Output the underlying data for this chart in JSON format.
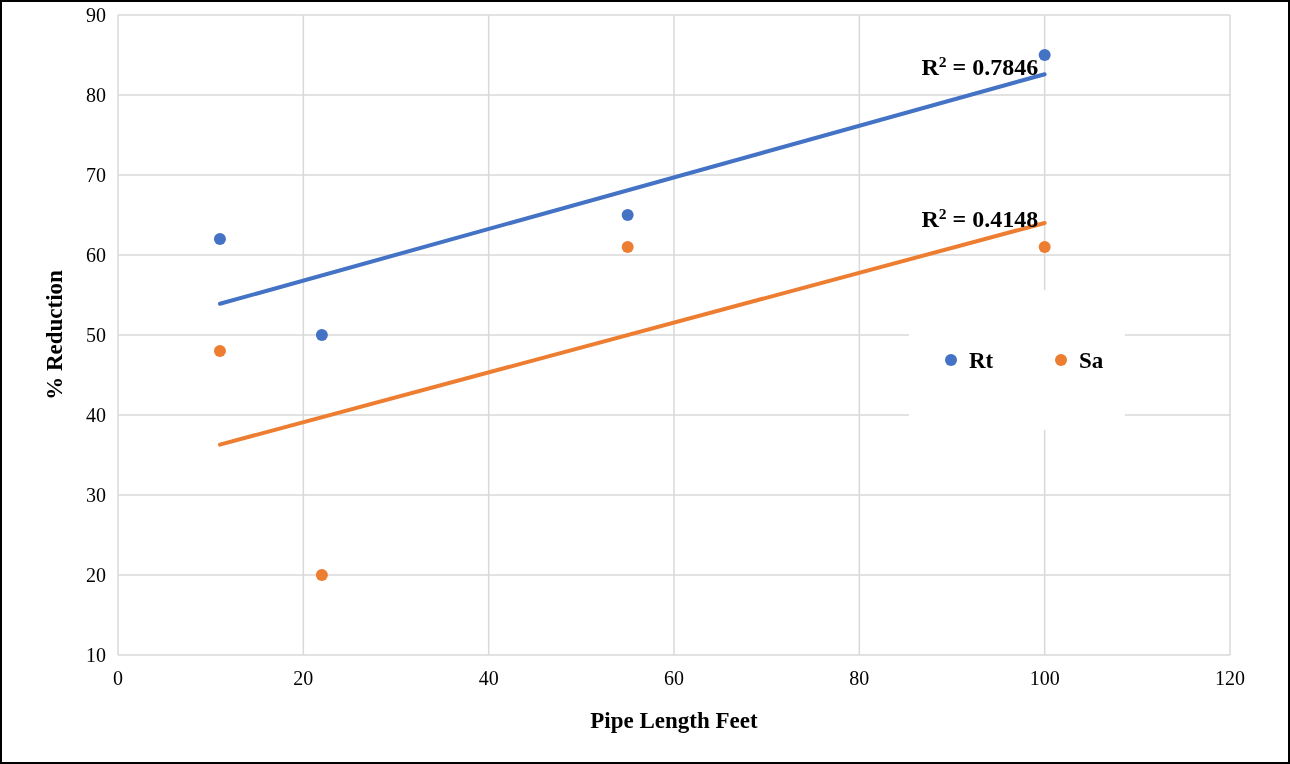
{
  "chart_data": {
    "type": "scatter",
    "xlabel": "Pipe Length Feet",
    "ylabel": "% Reduction",
    "xlim": [
      0,
      120
    ],
    "xticks": [
      0,
      20,
      40,
      60,
      80,
      100,
      120
    ],
    "ylim": [
      10,
      90
    ],
    "yticks": [
      10,
      20,
      30,
      40,
      50,
      60,
      70,
      80,
      90
    ],
    "grid": true,
    "legend": "right",
    "marker": "circle",
    "series": [
      {
        "name": "Rt",
        "color": "#4472c4",
        "x": [
          11,
          22,
          55,
          100
        ],
        "values": [
          62,
          50,
          65,
          85
        ]
      },
      {
        "name": "Sa",
        "color": "#ed7d31",
        "x": [
          11,
          22,
          55,
          100
        ],
        "values": [
          48,
          20,
          61,
          61
        ]
      },
      {
        "type": "line",
        "color": "#4472c4",
        "marker": "none",
        "x": [
          11,
          100
        ],
        "values": [
          53.9,
          82.6
        ]
      },
      {
        "type": "line",
        "color": "#ed7d31",
        "marker": "none",
        "x": [
          11,
          100
        ],
        "values": [
          36.3,
          64.0
        ]
      }
    ],
    "annotations": [
      {
        "text": "R$^{2}$ = 0.7846",
        "x": 93,
        "y": 81
      },
      {
        "text": "R$^{2}$ = 0.4148",
        "x": 93,
        "y": 62
      }
    ]
  }
}
